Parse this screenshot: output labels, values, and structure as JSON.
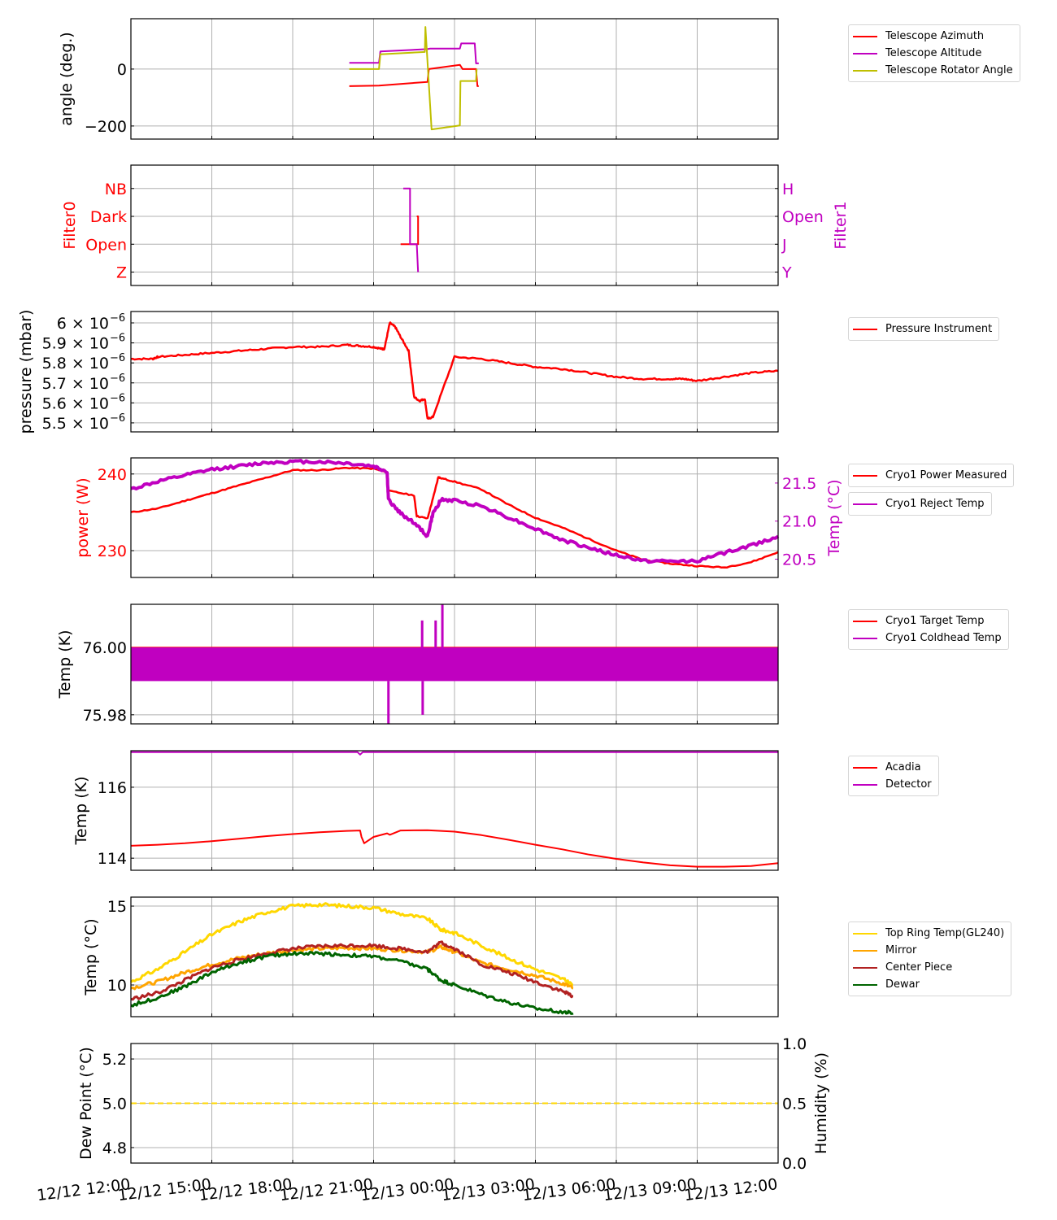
{
  "chart_data": [
    {
      "id": "angle",
      "type": "line",
      "ylabel": "angle (deg.)",
      "ylim": [
        -246,
        177
      ],
      "yticks": [
        {
          "v": 0,
          "label": "0"
        },
        {
          "v": -200,
          "label": "−200"
        }
      ],
      "grid": true,
      "legend": "right",
      "series": [
        {
          "name": "Telescope Azimuth",
          "color": "#ff0000",
          "x": [
            8.1,
            9.2,
            11.0,
            11.05,
            12.2,
            12.3,
            12.8,
            12.85,
            12.9
          ],
          "y": [
            -60,
            -58,
            -45,
            0,
            15,
            0,
            0,
            -60,
            -60
          ]
        },
        {
          "name": "Telescope Altitude",
          "color": "#c000c0",
          "x": [
            8.1,
            9.2,
            9.25,
            11.0,
            11.1,
            12.2,
            12.25,
            12.75,
            12.8,
            12.9
          ],
          "y": [
            22,
            22,
            62,
            70,
            72,
            72,
            90,
            90,
            20,
            20
          ]
        },
        {
          "name": "Telescope Rotator Angle",
          "color": "#bfbf00",
          "x": [
            8.1,
            9.2,
            9.25,
            10.9,
            10.92,
            11.15,
            12.2,
            12.22,
            12.8,
            12.82
          ],
          "y": [
            0,
            0,
            52,
            60,
            148,
            -212,
            -198,
            -42,
            -42,
            0
          ]
        }
      ]
    },
    {
      "id": "filters",
      "type": "line",
      "ylabel_left": "Filter0",
      "ylabel_right": "Filter1",
      "left_ticks": [
        "Z",
        "Open",
        "Dark",
        "NB"
      ],
      "right_ticks": [
        "Y",
        "J",
        "Open",
        "H"
      ],
      "grid": true,
      "series": [
        {
          "name": "Filter0",
          "color": "#ff0000",
          "x": [
            10.0,
            10.6,
            10.65,
            10.65,
            10.6
          ],
          "y": [
            1,
            1,
            1,
            2,
            2
          ]
        },
        {
          "name": "Filter1",
          "color": "#c000c0",
          "x": [
            10.1,
            10.35,
            10.35,
            10.6,
            10.6,
            10.65
          ],
          "y": [
            3,
            3,
            1,
            1,
            1,
            0
          ]
        }
      ]
    },
    {
      "id": "pressure",
      "type": "line",
      "ylabel": "pressure (mbar)",
      "ylim": [
        5.455,
        6.057
      ],
      "yticks": [
        {
          "v": 6.0,
          "mant": "6",
          "exp": "−6"
        },
        {
          "v": 5.9,
          "mant": "5.9",
          "exp": "−6"
        },
        {
          "v": 5.8,
          "mant": "5.8",
          "exp": "−6"
        },
        {
          "v": 5.7,
          "mant": "5.7",
          "exp": "−6"
        },
        {
          "v": 5.6,
          "mant": "5.6",
          "exp": "−6"
        },
        {
          "v": 5.5,
          "mant": "5.5",
          "exp": "−6"
        }
      ],
      "tick_mult": "× 10",
      "grid": true,
      "legend": "right",
      "series": [
        {
          "name": "Pressure Instrument",
          "color": "#ff0000",
          "x": [
            0,
            0.8,
            1.0,
            2.0,
            3.0,
            4.0,
            5.0,
            6.0,
            7.0,
            8.0,
            8.5,
            9.0,
            9.3,
            9.4,
            9.6,
            9.8,
            10.0,
            10.3,
            10.5,
            10.7,
            10.9,
            11.0,
            11.2,
            12.0,
            13.0,
            14.0,
            15.0,
            16.0,
            17.0,
            18.0,
            19.0,
            20.0,
            20.5,
            21.0,
            22.0,
            23.0,
            24.0
          ],
          "y": [
            5.82,
            5.82,
            5.83,
            5.84,
            5.85,
            5.86,
            5.87,
            5.88,
            5.88,
            5.89,
            5.885,
            5.88,
            5.87,
            5.87,
            6.0,
            5.98,
            5.93,
            5.86,
            5.63,
            5.61,
            5.62,
            5.52,
            5.53,
            5.83,
            5.82,
            5.8,
            5.78,
            5.77,
            5.75,
            5.73,
            5.72,
            5.72,
            5.72,
            5.71,
            5.73,
            5.75,
            5.76
          ]
        }
      ]
    },
    {
      "id": "cryo_power",
      "type": "line",
      "ylabel_left": "power (W)",
      "ylabel_right": "Temp (°C)",
      "ylim_left": [
        226.5,
        242.1
      ],
      "ylim_right": [
        20.26,
        21.83
      ],
      "left_ticks": [
        {
          "v": 240,
          "label": "240"
        },
        {
          "v": 230,
          "label": "230"
        }
      ],
      "right_ticks": [
        {
          "v": 21.5,
          "label": "21.5"
        },
        {
          "v": 21.0,
          "label": "21.0"
        },
        {
          "v": 20.5,
          "label": "20.5"
        }
      ],
      "grid": true,
      "legend": "right",
      "series": [
        {
          "name": "Cryo1 Power Measured",
          "color": "#ff0000",
          "axis": "left",
          "x": [
            0,
            1,
            2,
            3,
            4,
            5,
            6,
            7,
            8,
            9.0,
            9.5,
            9.55,
            10.5,
            10.6,
            11.0,
            11.2,
            11.4,
            11.45,
            12.0,
            13.0,
            14.0,
            15.0,
            16.0,
            17.0,
            18.0,
            19.0,
            20.0,
            21.0,
            22.0,
            23.0,
            24.0
          ],
          "y": [
            235,
            235.5,
            236.5,
            237.5,
            238.5,
            239.5,
            240.5,
            240.5,
            240.8,
            240.7,
            240.2,
            237.8,
            237.2,
            234.5,
            234.2,
            236.8,
            239.6,
            239.5,
            239.0,
            238.0,
            236.0,
            234.3,
            233.0,
            231.5,
            230.0,
            228.8,
            228.3,
            228.0,
            227.8,
            228.5,
            229.8
          ]
        },
        {
          "name": "Cryo1 Reject Temp",
          "color": "#c000c0",
          "axis": "right",
          "x": [
            0,
            1,
            2,
            3,
            4,
            5,
            6,
            7,
            8,
            9.0,
            9.5,
            9.55,
            10.0,
            10.5,
            11.0,
            11.2,
            11.5,
            12.0,
            13.0,
            14.0,
            15.0,
            16.0,
            17.0,
            18.0,
            19.0,
            20.0,
            21.0,
            22.0,
            23.0,
            24.0
          ],
          "y": [
            21.42,
            21.52,
            21.6,
            21.68,
            21.72,
            21.77,
            21.78,
            21.78,
            21.76,
            21.72,
            21.65,
            21.28,
            21.1,
            20.98,
            20.8,
            21.1,
            21.28,
            21.27,
            21.2,
            21.05,
            20.9,
            20.75,
            20.65,
            20.55,
            20.48,
            20.47,
            20.48,
            20.58,
            20.68,
            20.8
          ]
        }
      ]
    },
    {
      "id": "cryo_temp",
      "type": "line",
      "ylabel": "Temp (K)",
      "ylim": [
        75.9773,
        76.0128
      ],
      "yticks": [
        {
          "v": 76.0,
          "label": "76.00"
        },
        {
          "v": 75.98,
          "label": "75.98"
        }
      ],
      "grid": true,
      "legend": "right",
      "series": [
        {
          "name": "Cryo1 Target Temp",
          "color": "#ff0000",
          "x": [
            0,
            24
          ],
          "y": [
            76.0,
            76.0
          ]
        },
        {
          "name": "Cryo1 Coldhead Temp",
          "color": "#c000c0",
          "band": [
            75.99,
            76.0
          ],
          "spikes": [
            {
              "x": 9.55,
              "y": 75.977
            },
            {
              "x": 10.8,
              "y": 76.008
            },
            {
              "x": 10.82,
              "y": 75.98
            },
            {
              "x": 11.3,
              "y": 76.008
            },
            {
              "x": 11.55,
              "y": 76.0128
            }
          ]
        }
      ]
    },
    {
      "id": "acadia",
      "type": "line",
      "ylabel": "Temp (K)",
      "ylim": [
        113.66,
        117.03
      ],
      "yticks": [
        {
          "v": 116,
          "label": "116"
        },
        {
          "v": 114,
          "label": "114"
        }
      ],
      "grid": true,
      "legend": "right",
      "series": [
        {
          "name": "Acadia",
          "color": "#ff0000",
          "x": [
            0,
            1,
            2,
            3,
            4,
            5,
            6,
            7,
            8,
            8.5,
            8.55,
            8.65,
            9.0,
            9.5,
            9.6,
            10.0,
            11.0,
            12.0,
            13.0,
            14.0,
            15.0,
            16.0,
            17.0,
            18.0,
            19.0,
            20.0,
            21.0,
            22.0,
            23.0,
            24.0
          ],
          "y": [
            114.35,
            114.38,
            114.42,
            114.48,
            114.55,
            114.62,
            114.68,
            114.73,
            114.77,
            114.78,
            114.6,
            114.42,
            114.6,
            114.7,
            114.66,
            114.78,
            114.79,
            114.75,
            114.65,
            114.52,
            114.38,
            114.25,
            114.1,
            113.98,
            113.88,
            113.8,
            113.76,
            113.76,
            113.78,
            113.86
          ]
        },
        {
          "name": "Detector",
          "color": "#c000c0",
          "x": [
            0,
            8.4,
            8.5,
            8.6,
            8.7,
            24
          ],
          "y": [
            116.99,
            116.99,
            116.92,
            116.99,
            116.99,
            116.99
          ]
        }
      ]
    },
    {
      "id": "mirror_temps",
      "type": "line",
      "ylabel": "Temp (°C)",
      "ylim": [
        7.99,
        15.57
      ],
      "yticks": [
        {
          "v": 15,
          "label": "15"
        },
        {
          "v": 10,
          "label": "10"
        }
      ],
      "grid": true,
      "legend": "right",
      "series": [
        {
          "name": "Top Ring Temp(GL240)",
          "color": "#ffd700",
          "x": [
            0,
            1,
            2,
            3,
            4,
            5,
            6,
            7,
            8,
            9,
            10,
            11.0,
            11.5,
            12.0,
            13.0,
            14.0,
            15.0,
            16.0,
            16.4
          ],
          "y": [
            10.2,
            11.0,
            12.1,
            13.2,
            14.0,
            14.6,
            15.0,
            15.1,
            15.0,
            14.9,
            14.5,
            14.2,
            13.5,
            13.3,
            12.5,
            11.7,
            11.0,
            10.4,
            10.0
          ]
        },
        {
          "name": "Mirror",
          "color": "#ffa500",
          "x": [
            0,
            1,
            2,
            3,
            4,
            5,
            6,
            7,
            8,
            9,
            10,
            11.0,
            11.5,
            12.0,
            13.0,
            14.0,
            15.0,
            16.0,
            16.4
          ],
          "y": [
            9.8,
            10.2,
            10.8,
            11.3,
            11.7,
            12.0,
            12.2,
            12.3,
            12.35,
            12.3,
            12.2,
            12.1,
            12.4,
            12.1,
            11.4,
            11.0,
            10.6,
            10.1,
            9.8
          ]
        },
        {
          "name": "Center Piece",
          "color": "#b22222",
          "x": [
            0,
            1,
            2,
            3,
            4,
            5,
            6,
            7,
            8,
            9,
            10,
            11.0,
            11.5,
            12.0,
            13.0,
            14.0,
            15.0,
            16.0,
            16.4
          ],
          "y": [
            9.1,
            9.5,
            10.3,
            11.1,
            11.6,
            12.0,
            12.3,
            12.45,
            12.5,
            12.5,
            12.3,
            12.1,
            12.7,
            12.3,
            11.3,
            10.8,
            10.2,
            9.6,
            9.3
          ]
        },
        {
          "name": "Dewar",
          "color": "#006400",
          "x": [
            0,
            1,
            2,
            3,
            4,
            5,
            6,
            7,
            8,
            9,
            10,
            11.0,
            11.5,
            12.0,
            13.0,
            14.0,
            15.0,
            16.0,
            16.4
          ],
          "y": [
            8.7,
            9.2,
            9.9,
            10.8,
            11.4,
            11.8,
            12.0,
            12.0,
            11.9,
            11.8,
            11.5,
            11.0,
            10.3,
            10.0,
            9.4,
            8.9,
            8.5,
            8.3,
            8.2
          ]
        }
      ]
    },
    {
      "id": "dewpoint",
      "type": "line",
      "ylabel_left": "Dew Point (°C)",
      "ylabel_right": "Humidity (%)",
      "ylim_left": [
        4.73,
        5.27
      ],
      "ylim_right": [
        0.0,
        1.0
      ],
      "left_ticks": [
        {
          "v": 5.2,
          "label": "5.2"
        },
        {
          "v": 5.0,
          "label": "5.0"
        },
        {
          "v": 4.8,
          "label": "4.8"
        }
      ],
      "right_ticks": [
        {
          "v": 1.0,
          "label": "1.0"
        },
        {
          "v": 0.5,
          "label": "0.5"
        },
        {
          "v": 0.0,
          "label": "0.0"
        }
      ],
      "grid": true,
      "series": [
        {
          "name": "Dew Point",
          "color": "#ffd700",
          "axis": "left",
          "style": "dashed",
          "x": [
            0,
            24
          ],
          "y": [
            5.0,
            5.0
          ]
        }
      ]
    }
  ],
  "xaxis": {
    "xlim_hours": [
      0,
      24
    ],
    "tick_labels": [
      "12/12 12:00",
      "12/12 15:00",
      "12/12 18:00",
      "12/12 21:00",
      "12/13 00:00",
      "12/13 03:00",
      "12/13 06:00",
      "12/13 09:00",
      "12/13 12:00"
    ]
  },
  "colors": {
    "grid": "#b0b0b0",
    "red": "#ff0000",
    "magenta": "#c000c0"
  }
}
